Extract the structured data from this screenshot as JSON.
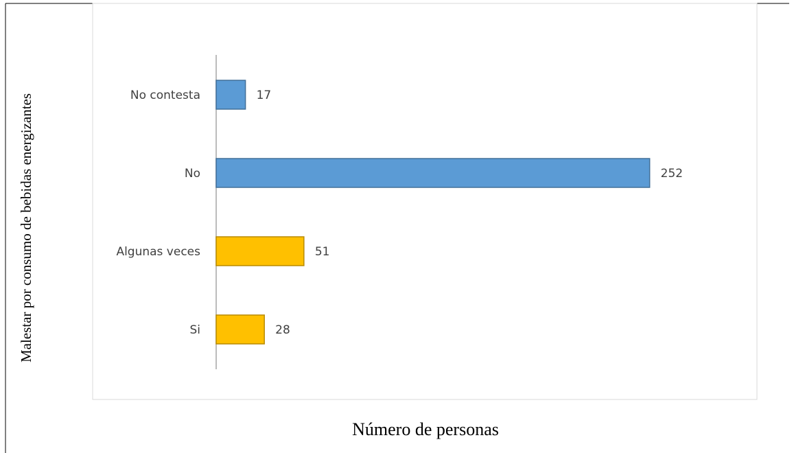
{
  "chart_data": {
    "type": "barh",
    "ylabel": "Malestar por consumo de bebidas energizantes",
    "xlabel": "Número de personas",
    "categories": [
      "No contesta",
      "No",
      "Algunas veces",
      "Si"
    ],
    "values": [
      17,
      252,
      51,
      28
    ],
    "colors": [
      "#5b9bd5",
      "#5b9bd5",
      "#ffc000",
      "#ffc000"
    ],
    "xlim": [
      0,
      300
    ]
  }
}
